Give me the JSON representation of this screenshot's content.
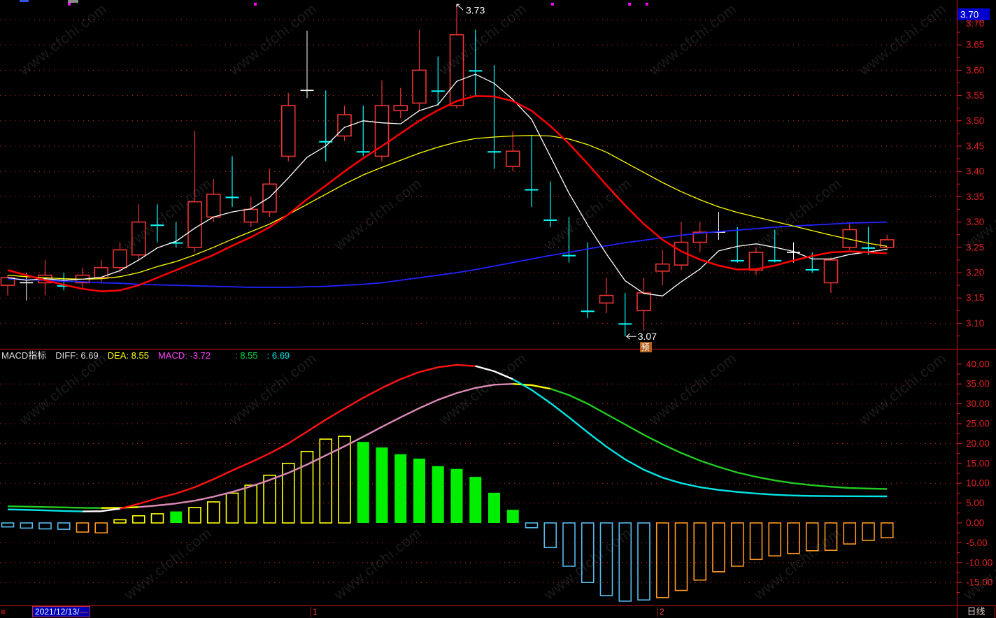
{
  "app": {
    "watermark": "www.cfchi.com"
  },
  "price_panel": {
    "axis_labels": [
      "3.70",
      "3.65",
      "3.60",
      "3.55",
      "3.50",
      "3.45",
      "3.40",
      "3.35",
      "3.30",
      "3.25",
      "3.20",
      "3.15",
      "3.10"
    ],
    "axis_values": [
      3.7,
      3.65,
      3.6,
      3.55,
      3.5,
      3.45,
      3.4,
      3.35,
      3.3,
      3.25,
      3.2,
      3.15,
      3.1
    ],
    "current_price_badge": "3.70",
    "high_annotation": "3.73",
    "low_annotation": "3.07",
    "flag_badge": "预",
    "event_dot_x": [
      97,
      363,
      788,
      898,
      923
    ],
    "colors": {
      "up": "#ee3333",
      "down": "#00ffff",
      "doji": "#ffffff",
      "ma_white": "#ffffff",
      "ma_yellow": "#ffff00",
      "ma_red": "#ff0000",
      "ma_blue": "#2222ff"
    }
  },
  "macd_panel": {
    "legend": [
      {
        "label": "MACD指标",
        "color": "#dcdcdc"
      },
      {
        "label": "DIFF: 6.69",
        "color": "#dcdcdc"
      },
      {
        "label": "DEA: 8.55",
        "color": "#ffff00"
      },
      {
        "label": "MACD: -3.72",
        "color": "#ff40ff"
      },
      {
        "label": ": 8.55",
        "color": "#00e044"
      },
      {
        "label": ": 6.69",
        "color": "#00e0e0"
      }
    ],
    "axis_labels": [
      "40.00",
      "35.00",
      "30.00",
      "25.00",
      "20.00",
      "15.00",
      "10.00",
      "5.00",
      "0.00",
      "-5.00",
      "-10.00",
      "-15.00"
    ],
    "axis_values": [
      40,
      35,
      30,
      25,
      20,
      15,
      10,
      5,
      0,
      -5,
      -10,
      -15
    ],
    "bar_color_map": {
      "y": "#ffff00",
      "g": "#00ee00",
      "c": "#55bbee",
      "o": "#ff9922"
    }
  },
  "status_bar": {
    "menu_icon": "≡",
    "date": "2021/12/13/",
    "dash": "—",
    "marker_1": "1",
    "marker_2": "2",
    "period": "日线"
  },
  "chart_data": [
    {
      "type": "candlestick",
      "title": "daily price panel",
      "ylabel": "price",
      "ylim": [
        3.05,
        3.75
      ],
      "grid": "dotted-red-horizontal",
      "candles": [
        [
          3.175,
          3.195,
          3.155,
          3.19,
          "r"
        ],
        [
          3.18,
          3.2,
          3.145,
          3.18,
          "d"
        ],
        [
          3.18,
          3.225,
          3.155,
          3.195,
          "r"
        ],
        [
          3.195,
          3.2,
          3.165,
          3.175,
          "g"
        ],
        [
          3.18,
          3.21,
          3.17,
          3.195,
          "r"
        ],
        [
          3.19,
          3.225,
          3.18,
          3.21,
          "r"
        ],
        [
          3.21,
          3.26,
          3.2,
          3.245,
          "r"
        ],
        [
          3.235,
          3.335,
          3.225,
          3.3,
          "r"
        ],
        [
          3.315,
          3.335,
          3.26,
          3.295,
          "g"
        ],
        [
          3.285,
          3.3,
          3.25,
          3.26,
          "g"
        ],
        [
          3.25,
          3.48,
          3.24,
          3.34,
          "r"
        ],
        [
          3.31,
          3.385,
          3.3,
          3.355,
          "r"
        ],
        [
          3.41,
          3.43,
          3.33,
          3.35,
          "g"
        ],
        [
          3.3,
          3.35,
          3.29,
          3.325,
          "r"
        ],
        [
          3.32,
          3.405,
          3.31,
          3.375,
          "r"
        ],
        [
          3.43,
          3.555,
          3.42,
          3.53,
          "r"
        ],
        [
          3.56,
          3.678,
          3.545,
          3.56,
          "d"
        ],
        [
          3.555,
          3.56,
          3.42,
          3.46,
          "g"
        ],
        [
          3.47,
          3.53,
          3.46,
          3.512,
          "r"
        ],
        [
          3.5,
          3.53,
          3.43,
          3.44,
          "g"
        ],
        [
          3.43,
          3.58,
          3.42,
          3.53,
          "r"
        ],
        [
          3.52,
          3.565,
          3.505,
          3.53,
          "r"
        ],
        [
          3.535,
          3.68,
          3.52,
          3.6,
          "r"
        ],
        [
          3.6,
          3.627,
          3.53,
          3.56,
          "g"
        ],
        [
          3.53,
          3.73,
          3.524,
          3.67,
          "r"
        ],
        [
          3.64,
          3.68,
          3.55,
          3.6,
          "g"
        ],
        [
          3.57,
          3.61,
          3.405,
          3.44,
          "g"
        ],
        [
          3.41,
          3.48,
          3.4,
          3.44,
          "r"
        ],
        [
          3.455,
          3.47,
          3.33,
          3.365,
          "g"
        ],
        [
          3.36,
          3.38,
          3.29,
          3.305,
          "g"
        ],
        [
          3.29,
          3.31,
          3.22,
          3.235,
          "g"
        ],
        [
          3.25,
          3.26,
          3.11,
          3.125,
          "g"
        ],
        [
          3.14,
          3.19,
          3.12,
          3.155,
          "r"
        ],
        [
          3.155,
          3.16,
          3.074,
          3.1,
          "g"
        ],
        [
          3.125,
          3.19,
          3.085,
          3.16,
          "r"
        ],
        [
          3.203,
          3.245,
          3.175,
          3.217,
          "r"
        ],
        [
          3.215,
          3.3,
          3.205,
          3.26,
          "r"
        ],
        [
          3.26,
          3.3,
          3.24,
          3.28,
          "r"
        ],
        [
          3.28,
          3.32,
          3.265,
          3.28,
          "d"
        ],
        [
          3.285,
          3.29,
          3.22,
          3.225,
          "g"
        ],
        [
          3.205,
          3.25,
          3.195,
          3.24,
          "r"
        ],
        [
          3.245,
          3.285,
          3.22,
          3.225,
          "g"
        ],
        [
          3.24,
          3.26,
          3.22,
          3.24,
          "d"
        ],
        [
          3.23,
          3.24,
          3.2,
          3.207,
          "g"
        ],
        [
          3.18,
          3.23,
          3.16,
          3.225,
          "r"
        ],
        [
          3.25,
          3.3,
          3.245,
          3.285,
          "r"
        ],
        [
          3.285,
          3.29,
          3.235,
          3.25,
          "g"
        ],
        [
          3.25,
          3.275,
          3.245,
          3.265,
          "r"
        ]
      ],
      "ma": {
        "white": [
          3.19,
          3.185,
          3.188,
          3.185,
          3.187,
          3.191,
          3.204,
          3.225,
          3.249,
          3.262,
          3.288,
          3.31,
          3.32,
          3.326,
          3.349,
          3.387,
          3.428,
          3.45,
          3.487,
          3.5,
          3.496,
          3.494,
          3.52,
          3.532,
          3.578,
          3.592,
          3.574,
          3.542,
          3.503,
          3.43,
          3.357,
          3.294,
          3.237,
          3.184,
          3.159,
          3.154,
          3.182,
          3.207,
          3.243,
          3.252,
          3.257,
          3.25,
          3.242,
          3.227,
          3.227,
          3.236,
          3.241,
          3.246
        ],
        "yellow": [
          3.195,
          3.192,
          3.19,
          3.188,
          3.187,
          3.188,
          3.192,
          3.2,
          3.212,
          3.222,
          3.235,
          3.25,
          3.266,
          3.281,
          3.296,
          3.315,
          3.335,
          3.355,
          3.375,
          3.393,
          3.408,
          3.422,
          3.436,
          3.448,
          3.458,
          3.465,
          3.468,
          3.47,
          3.471,
          3.47,
          3.464,
          3.453,
          3.438,
          3.418,
          3.398,
          3.378,
          3.36,
          3.344,
          3.33,
          3.319,
          3.31,
          3.301,
          3.292,
          3.283,
          3.274,
          3.266,
          3.258,
          3.252
        ],
        "red": [
          3.205,
          3.195,
          3.185,
          3.176,
          3.168,
          3.163,
          3.165,
          3.175,
          3.19,
          3.205,
          3.22,
          3.235,
          3.253,
          3.27,
          3.29,
          3.315,
          3.345,
          3.372,
          3.4,
          3.426,
          3.45,
          3.475,
          3.5,
          3.521,
          3.539,
          3.549,
          3.548,
          3.539,
          3.52,
          3.49,
          3.455,
          3.415,
          3.373,
          3.333,
          3.296,
          3.265,
          3.242,
          3.226,
          3.214,
          3.206,
          3.207,
          3.214,
          3.224,
          3.233,
          3.24,
          3.242,
          3.24,
          3.238
        ],
        "blue": [
          3.188,
          3.186,
          3.185,
          3.183,
          3.182,
          3.18,
          3.179,
          3.177,
          3.176,
          3.175,
          3.174,
          3.173,
          3.172,
          3.171,
          3.171,
          3.171,
          3.172,
          3.173,
          3.175,
          3.177,
          3.18,
          3.185,
          3.19,
          3.195,
          3.2,
          3.206,
          3.213,
          3.22,
          3.227,
          3.234,
          3.24,
          3.247,
          3.253,
          3.259,
          3.264,
          3.269,
          3.274,
          3.278,
          3.281,
          3.284,
          3.287,
          3.29,
          3.292,
          3.294,
          3.296,
          3.298,
          3.299,
          3.3
        ]
      }
    },
    {
      "type": "bar",
      "title": "MACD indicator panel",
      "ylim": [
        -20,
        42
      ],
      "grid": "dotted-red-horizontal",
      "values": [
        -1.0,
        -1.3,
        -1.5,
        -1.6,
        -2.3,
        -2.5,
        0.8,
        1.8,
        2.3,
        2.9,
        3.9,
        5.3,
        7.5,
        9.5,
        12.0,
        15.0,
        18.0,
        21.1,
        21.8,
        20.4,
        19.0,
        17.3,
        16.2,
        14.3,
        13.6,
        11.6,
        7.6,
        3.3,
        -1.2,
        -6.2,
        -10.9,
        -15.0,
        -18.3,
        -19.7,
        -19.4,
        -18.8,
        -17.0,
        -14.4,
        -12.3,
        -10.9,
        -9.2,
        -8.3,
        -7.7,
        -7.0,
        -6.9,
        -5.3,
        -4.4,
        -3.72
      ],
      "bar_colors": [
        "c",
        "c",
        "c",
        "c",
        "o",
        "o",
        "y",
        "y",
        "y",
        "g",
        "y",
        "y",
        "y",
        "y",
        "y",
        "y",
        "y",
        "y",
        "y",
        "g",
        "g",
        "g",
        "g",
        "g",
        "g",
        "g",
        "g",
        "g",
        "c",
        "c",
        "c",
        "c",
        "c",
        "c",
        "c",
        "o",
        "o",
        "o",
        "o",
        "o",
        "o",
        "o",
        "o",
        "o",
        "o",
        "o",
        "o",
        "o"
      ],
      "series": [
        {
          "name": "DIFF",
          "current": 6.69,
          "values": [
            3.4,
            3.3,
            3.15,
            3.0,
            2.9,
            2.95,
            3.6,
            4.8,
            6.2,
            7.4,
            9.0,
            11.0,
            13.2,
            15.3,
            17.5,
            20.0,
            23.0,
            26.0,
            28.8,
            31.5,
            34.0,
            36.2,
            38.0,
            39.2,
            39.8,
            39.5,
            38.2,
            36.2,
            33.5,
            30.2,
            26.6,
            22.8,
            19.2,
            16.0,
            13.4,
            11.4,
            10.0,
            9.0,
            8.3,
            7.8,
            7.4,
            7.1,
            6.9,
            6.8,
            6.75,
            6.72,
            6.7,
            6.69
          ],
          "segments": [
            [
              "#00e5e5",
              0,
              4
            ],
            [
              "#ffffff",
              4,
              6
            ],
            [
              "#ff1414",
              6,
              25
            ],
            [
              "#ffffff",
              25,
              27
            ],
            [
              "#00e5e5",
              27,
              47
            ]
          ]
        },
        {
          "name": "DEA",
          "current": 8.55,
          "values": [
            4.2,
            4.1,
            4.0,
            3.9,
            3.8,
            3.75,
            3.8,
            4.0,
            4.4,
            4.9,
            5.6,
            6.6,
            7.8,
            9.2,
            10.8,
            12.6,
            14.7,
            17.0,
            19.3,
            21.7,
            24.2,
            26.6,
            28.9,
            31.0,
            32.7,
            34.0,
            34.8,
            35.0,
            34.7,
            33.8,
            32.2,
            30.0,
            27.4,
            24.8,
            22.2,
            19.8,
            17.6,
            15.7,
            14.1,
            12.7,
            11.6,
            10.7,
            10.0,
            9.5,
            9.1,
            8.8,
            8.65,
            8.55
          ],
          "segments": [
            [
              "#22cc22",
              0,
              5
            ],
            [
              "#ffff00",
              5,
              7
            ],
            [
              "#dd8ab8",
              7,
              27
            ],
            [
              "#ffff00",
              27,
              29
            ],
            [
              "#22cc22",
              29,
              47
            ]
          ]
        }
      ]
    }
  ]
}
